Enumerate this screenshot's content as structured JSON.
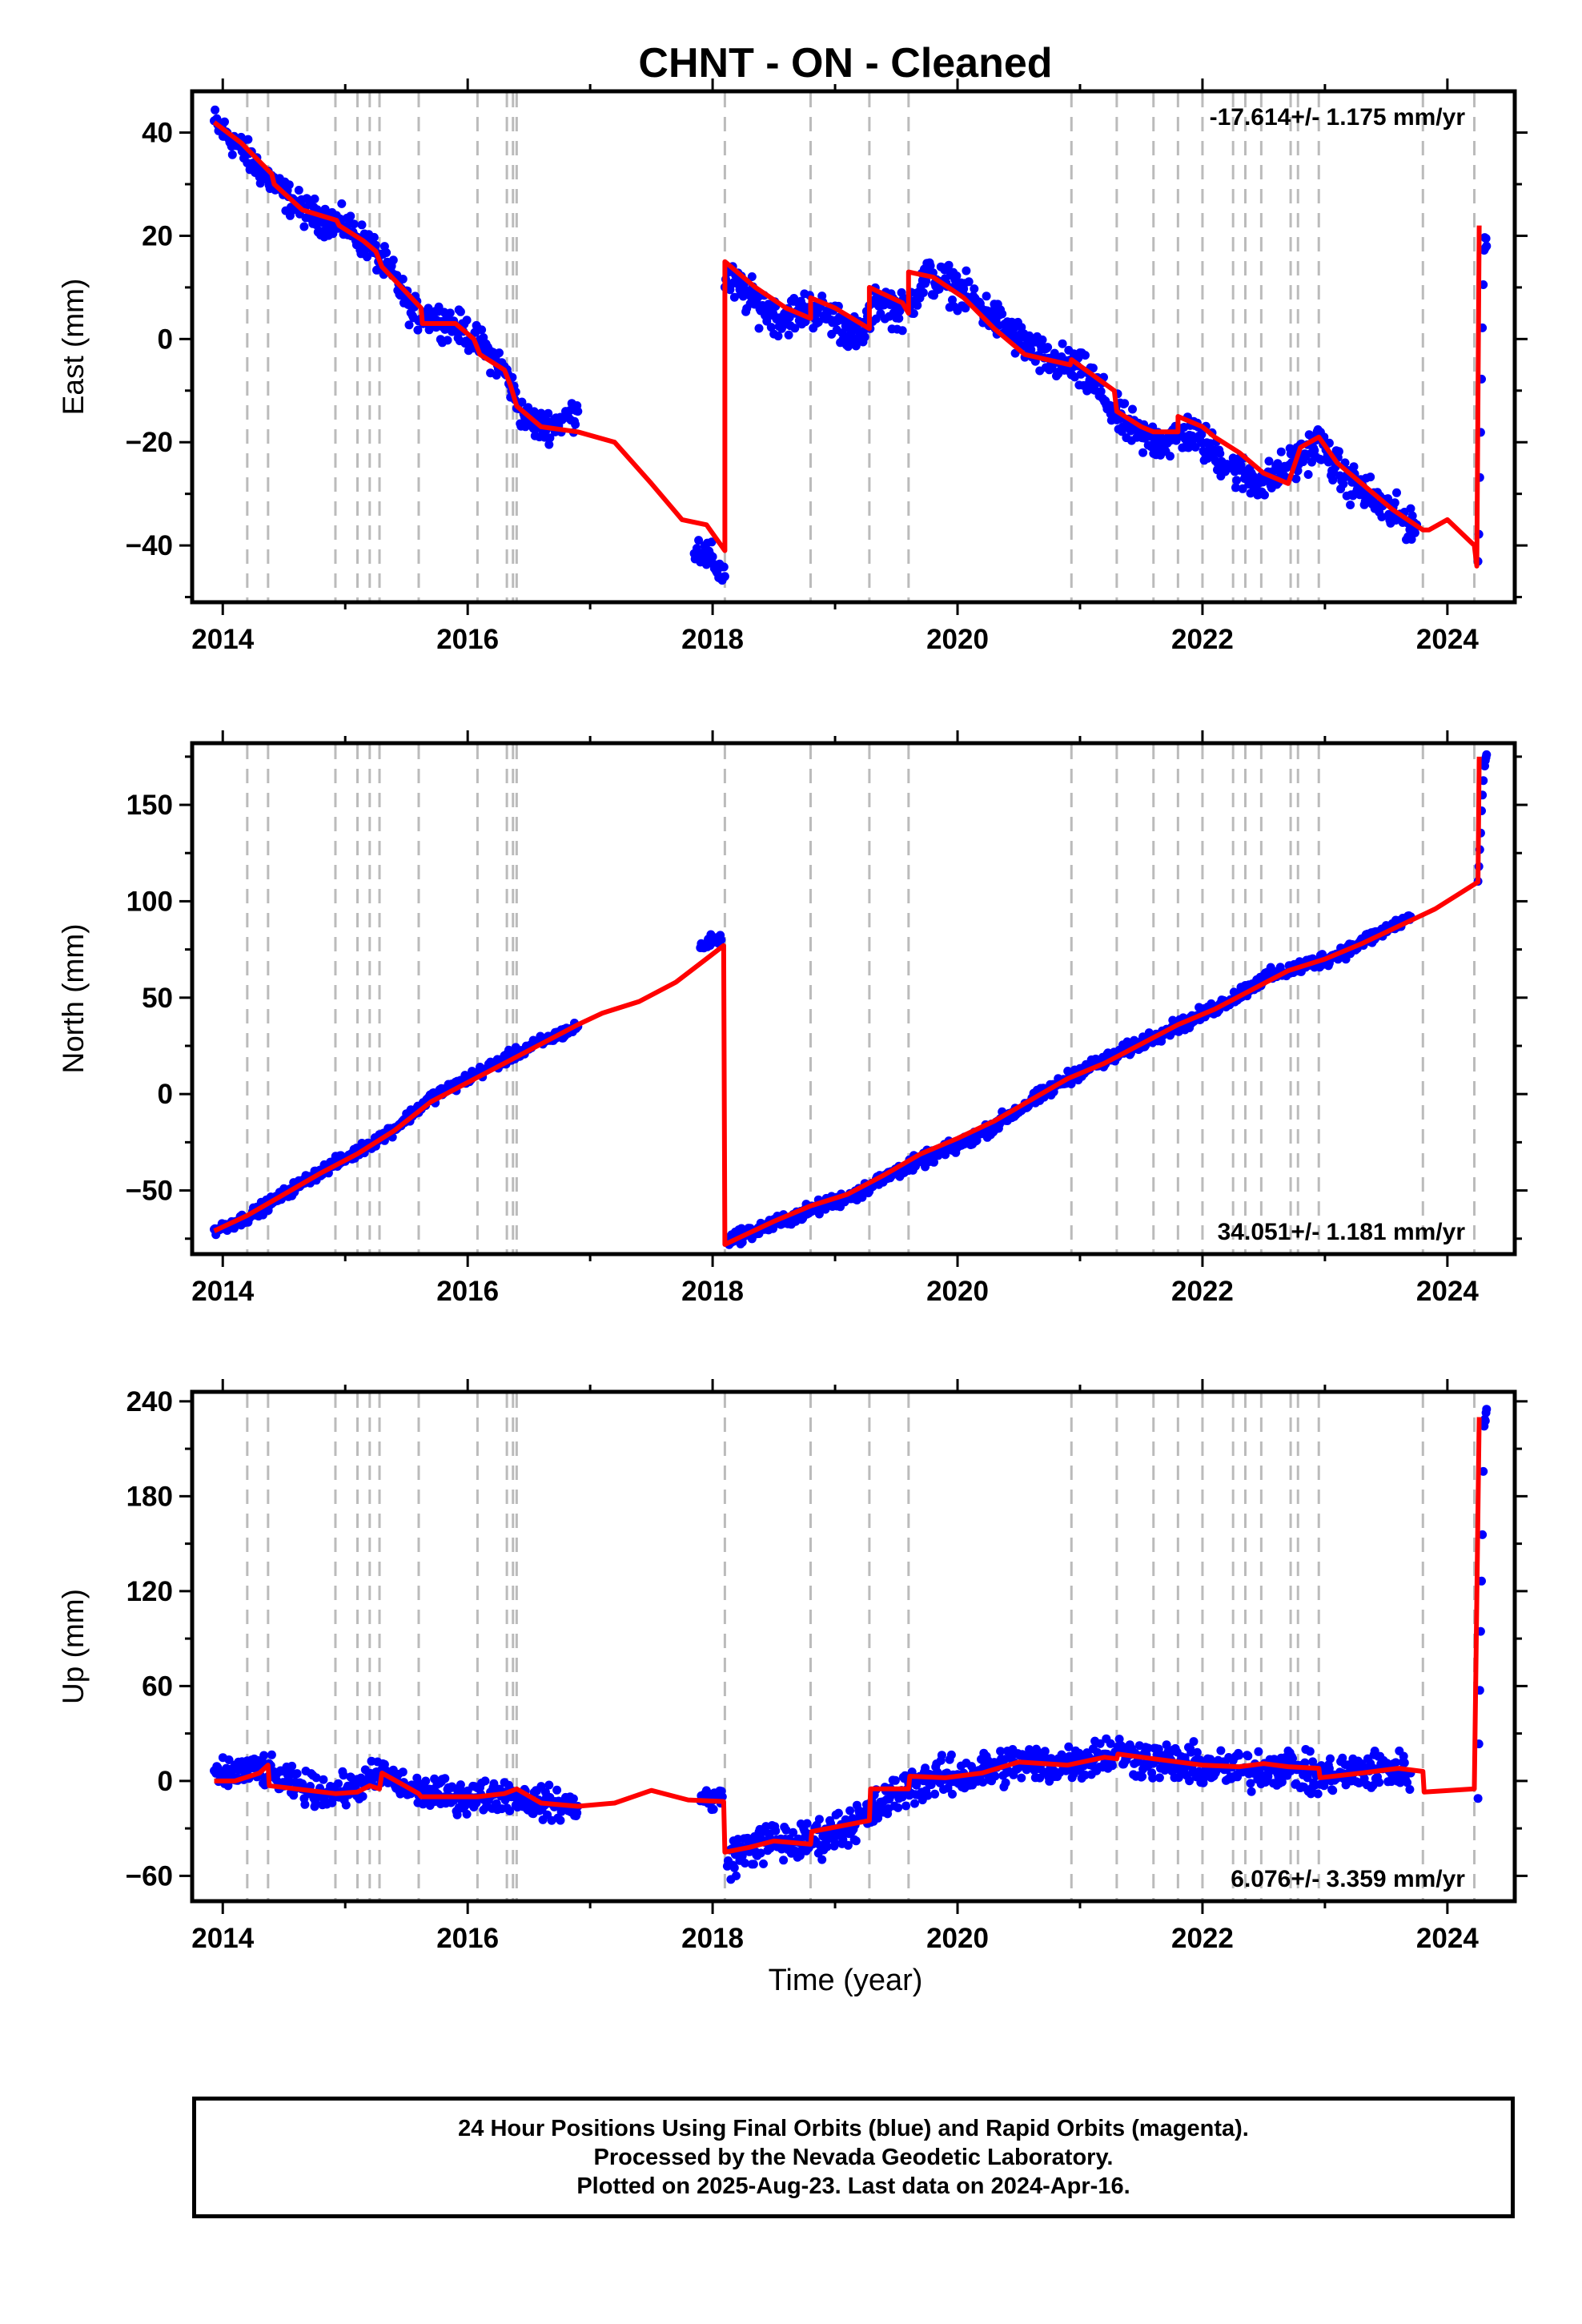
{
  "title": "CHNT  - ON - Cleaned",
  "xlabel": "Time (year)",
  "footer": {
    "line1": "24 Hour Positions Using Final Orbits (blue) and Rapid Orbits (magenta).",
    "line2": "Processed by the Nevada Geodetic Laboratory.",
    "line3": "Plotted on 2025-Aug-23. Last data on 2024-Apr-16."
  },
  "colors": {
    "data_points": "#0000ff",
    "model_line": "#ff0000",
    "event_lines": "#bbbbbb",
    "axes": "#000000"
  },
  "chart_data": [
    {
      "type": "scatter",
      "component": "East",
      "ylabel": "East (mm)",
      "rate_label": "-17.614+/- 1.175 mm/yr",
      "rate_position": "top-right",
      "xlim": [
        2013.75,
        2024.55
      ],
      "ylim": [
        -51,
        48
      ],
      "xticks": [
        2014,
        2016,
        2018,
        2020,
        2022,
        2024
      ],
      "yticks": [
        -40,
        -20,
        0,
        20,
        40
      ],
      "data_segments": [
        {
          "x": [
            2013.93,
            2014.1,
            2014.3,
            2014.5,
            2014.65,
            2014.85,
            2015.0,
            2015.2,
            2015.4,
            2015.55,
            2015.75,
            2015.95,
            2016.1,
            2016.3,
            2016.45,
            2016.6,
            2016.75,
            2016.9
          ],
          "y": [
            42,
            38,
            33,
            28,
            25,
            23,
            22,
            18,
            12,
            5,
            4,
            2,
            -1,
            -6,
            -15,
            -17,
            -16,
            -14
          ],
          "spread": 2.5
        },
        {
          "x": [
            2017.85,
            2018.0,
            2018.1
          ],
          "y": [
            -40,
            -43,
            -46
          ],
          "spread": 2.5
        },
        {
          "x": [
            2018.1,
            2018.3,
            2018.55,
            2018.8,
            2019.0,
            2019.2,
            2019.35,
            2019.55,
            2019.75,
            2020.0,
            2020.25,
            2020.5,
            2020.7,
            2020.9,
            2021.1,
            2021.3,
            2021.5,
            2021.7,
            2021.9,
            2022.1,
            2022.3,
            2022.5,
            2022.75,
            2022.95,
            2023.15,
            2023.35,
            2023.55,
            2023.75
          ],
          "y": [
            12,
            8,
            4,
            6,
            4,
            0,
            8,
            5,
            12,
            10,
            5,
            0,
            -4,
            -5,
            -8,
            -15,
            -19,
            -20,
            -18,
            -22,
            -26,
            -28,
            -24,
            -20,
            -27,
            -30,
            -34,
            -36
          ],
          "spread": 3
        },
        {
          "x": [
            2024.25,
            2024.3,
            2024.32
          ],
          "y": [
            -46,
            20,
            18
          ],
          "spread": 2
        }
      ],
      "model": {
        "x": [
          2013.93,
          2014.15,
          2014.4,
          2014.42,
          2014.65,
          2014.93,
          2014.95,
          2015.15,
          2015.25,
          2015.3,
          2015.5,
          2015.62,
          2015.63,
          2015.9,
          2016.05,
          2016.1,
          2016.3,
          2016.35,
          2016.4,
          2016.6,
          2016.9,
          2017.2,
          2017.5,
          2017.75,
          2017.95,
          2018.1,
          2018.1,
          2018.35,
          2018.6,
          2018.8,
          2018.8,
          2019.0,
          2019.28,
          2019.28,
          2019.55,
          2019.6,
          2019.6,
          2019.8,
          2020.05,
          2020.3,
          2020.55,
          2020.92,
          2020.93,
          2021.28,
          2021.3,
          2021.5,
          2021.6,
          2021.8,
          2021.8,
          2022.0,
          2022.1,
          2022.3,
          2022.5,
          2022.7,
          2022.8,
          2022.95,
          2023.1,
          2023.3,
          2023.55,
          2023.8,
          2023.85,
          2024.0,
          2024.22,
          2024.24,
          2024.26
        ],
        "y": [
          42,
          38,
          32,
          30,
          25,
          23,
          22,
          19,
          17,
          14,
          9,
          6,
          3,
          3,
          0,
          -3,
          -6,
          -9,
          -13,
          -17,
          -18,
          -20,
          -28,
          -35,
          -36,
          -41,
          15,
          10,
          6,
          4,
          8,
          6,
          2,
          10,
          7,
          5,
          13,
          12,
          8,
          2,
          -3,
          -5,
          -4,
          -10,
          -14,
          -17,
          -18,
          -18,
          -15,
          -17,
          -19,
          -22,
          -26,
          -28,
          -21,
          -19,
          -24,
          -28,
          -33,
          -37,
          -37,
          -35,
          -40,
          -44,
          22
        ]
      },
      "event_lines_x": [
        2014.2,
        2014.37,
        2014.92,
        2015.1,
        2015.2,
        2015.28,
        2015.6,
        2016.08,
        2016.32,
        2016.37,
        2016.4,
        2018.1,
        2018.8,
        2019.28,
        2019.6,
        2020.93,
        2021.3,
        2021.6,
        2021.8,
        2022.0,
        2022.25,
        2022.35,
        2022.48,
        2022.72,
        2022.78,
        2022.95,
        2023.8,
        2024.22
      ]
    },
    {
      "type": "scatter",
      "component": "North",
      "ylabel": "North (mm)",
      "rate_label": "34.051+/- 1.181 mm/yr",
      "rate_position": "bottom-right",
      "xlim": [
        2013.75,
        2024.55
      ],
      "ylim": [
        -83,
        182
      ],
      "xticks": [
        2014,
        2016,
        2018,
        2020,
        2022,
        2024
      ],
      "yticks": [
        -50,
        0,
        50,
        100,
        150
      ],
      "data_segments": [
        {
          "x": [
            2013.93,
            2014.2,
            2014.5,
            2014.8,
            2015.1,
            2015.4,
            2015.7,
            2016.0,
            2016.3,
            2016.6,
            2016.9
          ],
          "y": [
            -71,
            -64,
            -52,
            -40,
            -30,
            -18,
            -2,
            8,
            18,
            27,
            35
          ],
          "spread": 2.5
        },
        {
          "x": [
            2017.9,
            2018.0,
            2018.07
          ],
          "y": [
            76,
            80,
            80
          ],
          "spread": 2.5
        },
        {
          "x": [
            2018.12,
            2018.3,
            2018.6,
            2018.9,
            2019.2,
            2019.5,
            2019.8,
            2020.1,
            2020.4,
            2020.7,
            2021.0,
            2021.3,
            2021.6,
            2021.9,
            2022.2,
            2022.5,
            2022.8,
            2023.1,
            2023.4,
            2023.7
          ],
          "y": [
            -75,
            -72,
            -65,
            -58,
            -51,
            -40,
            -32,
            -24,
            -12,
            0,
            12,
            20,
            30,
            38,
            48,
            60,
            66,
            72,
            82,
            92
          ],
          "spread": 3
        },
        {
          "x": [
            2024.25,
            2024.3,
            2024.32
          ],
          "y": [
            110,
            170,
            176
          ],
          "spread": 2
        }
      ],
      "model": {
        "x": [
          2013.93,
          2014.2,
          2014.5,
          2014.8,
          2015.1,
          2015.4,
          2015.7,
          2016.0,
          2016.3,
          2016.6,
          2016.9,
          2017.1,
          2017.4,
          2017.7,
          2018.09,
          2018.1,
          2018.2,
          2018.5,
          2018.8,
          2019.1,
          2019.4,
          2019.7,
          2020.0,
          2020.3,
          2020.6,
          2020.9,
          2021.2,
          2021.5,
          2021.8,
          2022.1,
          2022.4,
          2022.7,
          2023.0,
          2023.3,
          2023.6,
          2023.9,
          2024.25,
          2024.26
        ],
        "y": [
          -71,
          -63,
          -52,
          -41,
          -31,
          -19,
          -4,
          6,
          16,
          26,
          36,
          42,
          48,
          58,
          77,
          -78,
          -75,
          -66,
          -58,
          -52,
          -42,
          -31,
          -23,
          -14,
          -3,
          8,
          16,
          26,
          36,
          44,
          54,
          64,
          70,
          78,
          87,
          96,
          110,
          175
        ]
      },
      "event_lines_x": [
        2014.2,
        2014.37,
        2014.92,
        2015.1,
        2015.2,
        2015.28,
        2015.6,
        2016.08,
        2016.32,
        2016.37,
        2016.4,
        2018.1,
        2018.8,
        2019.28,
        2019.6,
        2020.93,
        2021.3,
        2021.6,
        2021.8,
        2022.0,
        2022.25,
        2022.35,
        2022.48,
        2022.72,
        2022.78,
        2022.95,
        2023.8,
        2024.22
      ]
    },
    {
      "type": "scatter",
      "component": "Up",
      "ylabel": "Up (mm)",
      "rate_label": "6.076+/- 3.359 mm/yr",
      "rate_position": "bottom-right",
      "xlim": [
        2013.75,
        2024.55
      ],
      "ylim": [
        -76,
        246
      ],
      "xticks": [
        2014,
        2016,
        2018,
        2020,
        2022,
        2024
      ],
      "yticks": [
        -60,
        0,
        60,
        120,
        180,
        240
      ],
      "data_segments": [
        {
          "x": [
            2013.93,
            2014.1,
            2014.3,
            2014.5,
            2014.7,
            2014.9,
            2015.1,
            2015.3,
            2015.5,
            2015.7,
            2015.9,
            2016.1,
            2016.3,
            2016.5,
            2016.7,
            2016.9
          ],
          "y": [
            2,
            5,
            8,
            0,
            -5,
            -8,
            -3,
            5,
            -5,
            -8,
            -10,
            -10,
            -8,
            -12,
            -15,
            -16
          ],
          "spread": 8
        },
        {
          "x": [
            2017.9,
            2018.0,
            2018.08
          ],
          "y": [
            -10,
            -12,
            -10
          ],
          "spread": 6
        },
        {
          "x": [
            2018.12,
            2018.3,
            2018.5,
            2018.7,
            2018.9,
            2019.1,
            2019.3,
            2019.5,
            2019.7,
            2019.9,
            2020.1,
            2020.3,
            2020.5,
            2020.7,
            2020.9,
            2021.1,
            2021.3,
            2021.5,
            2021.7,
            2021.9,
            2022.1,
            2022.3,
            2022.5,
            2022.7,
            2022.9,
            2023.1,
            2023.3,
            2023.5,
            2023.7
          ],
          "y": [
            -50,
            -42,
            -38,
            -40,
            -35,
            -28,
            -20,
            -8,
            0,
            2,
            4,
            8,
            12,
            10,
            12,
            15,
            18,
            14,
            12,
            10,
            8,
            6,
            8,
            10,
            2,
            4,
            6,
            8,
            5
          ],
          "spread": 10
        },
        {
          "x": [
            2024.25,
            2024.3,
            2024.32
          ],
          "y": [
            -8,
            225,
            235
          ],
          "spread": 4
        }
      ],
      "model": {
        "x": [
          2013.93,
          2014.1,
          2014.3,
          2014.37,
          2014.38,
          2014.6,
          2014.92,
          2015.1,
          2015.2,
          2015.28,
          2015.3,
          2015.6,
          2015.62,
          2016.08,
          2016.3,
          2016.4,
          2016.6,
          2016.9,
          2017.2,
          2017.5,
          2017.8,
          2018.09,
          2018.1,
          2018.3,
          2018.5,
          2018.8,
          2018.81,
          2019.28,
          2019.29,
          2019.6,
          2019.61,
          2019.9,
          2020.2,
          2020.5,
          2020.9,
          2021.2,
          2021.3,
          2021.31,
          2021.6,
          2021.8,
          2022.0,
          2022.3,
          2022.5,
          2022.7,
          2022.95,
          2022.96,
          2023.3,
          2023.6,
          2023.8,
          2023.81,
          2024.22,
          2024.26
        ],
        "y": [
          0,
          0,
          5,
          10,
          -3,
          -5,
          -8,
          -7,
          -3,
          -5,
          5,
          -8,
          -10,
          -10,
          -8,
          -5,
          -14,
          -16,
          -14,
          -6,
          -12,
          -13,
          -45,
          -42,
          -38,
          -40,
          -32,
          -25,
          -5,
          -5,
          3,
          2,
          5,
          12,
          10,
          15,
          14,
          17,
          14,
          12,
          10,
          9,
          11,
          9,
          8,
          2,
          5,
          8,
          6,
          -7,
          -5,
          230
        ]
      },
      "event_lines_x": [
        2014.2,
        2014.37,
        2014.92,
        2015.1,
        2015.2,
        2015.28,
        2015.6,
        2016.08,
        2016.32,
        2016.37,
        2016.4,
        2018.1,
        2018.8,
        2019.28,
        2019.6,
        2020.93,
        2021.3,
        2021.6,
        2021.8,
        2022.0,
        2022.25,
        2022.35,
        2022.48,
        2022.72,
        2022.78,
        2022.95,
        2023.8,
        2024.22
      ]
    }
  ]
}
